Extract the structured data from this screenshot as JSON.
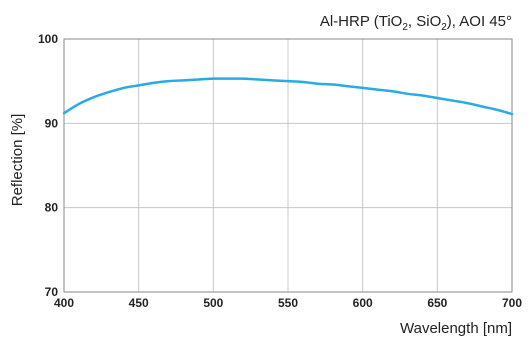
{
  "chart_data": {
    "type": "line",
    "title": {
      "prefix": "Al-HRP (TiO",
      "sub1": "2",
      "middle": ", SiO",
      "sub2": "2",
      "suffix": "), AOI 45°"
    },
    "xlabel": "Wavelength [nm]",
    "ylabel": "Reflection [%]",
    "xlim": [
      400,
      700
    ],
    "ylim": [
      70,
      100
    ],
    "xticks": [
      "400",
      "450",
      "500",
      "550",
      "600",
      "650",
      "700"
    ],
    "yticks": [
      "70",
      "80",
      "90",
      "100"
    ],
    "grid": true,
    "series": [
      {
        "color": "#29abe2",
        "x": [
          400,
          410,
          420,
          430,
          440,
          450,
          460,
          470,
          480,
          490,
          500,
          510,
          520,
          530,
          540,
          550,
          560,
          570,
          580,
          590,
          600,
          610,
          620,
          630,
          640,
          650,
          660,
          670,
          680,
          690,
          700
        ],
        "y": [
          91.2,
          92.3,
          93.1,
          93.7,
          94.2,
          94.5,
          94.8,
          95.0,
          95.1,
          95.2,
          95.3,
          95.3,
          95.3,
          95.2,
          95.1,
          95.0,
          94.9,
          94.7,
          94.6,
          94.4,
          94.2,
          94.0,
          93.8,
          93.5,
          93.3,
          93.0,
          92.7,
          92.4,
          92.0,
          91.6,
          91.1
        ]
      }
    ]
  }
}
